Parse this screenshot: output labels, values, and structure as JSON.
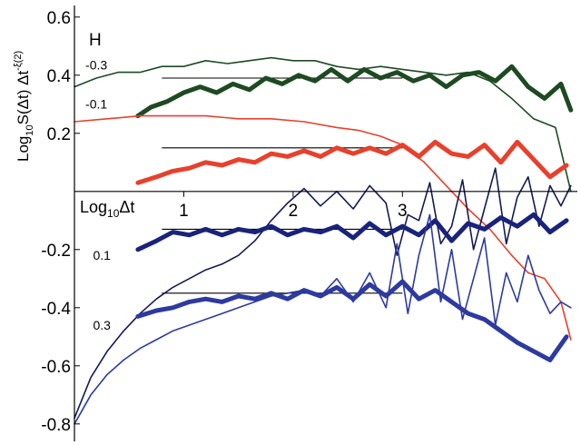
{
  "chart_data": {
    "type": "line",
    "xlabel_main": "Log",
    "xlabel_sub": "10",
    "xlabel_tail": "Δt",
    "ylabel_main": "Log",
    "ylabel_sub": "10",
    "ylabel_mid": "S(Δt) Δt",
    "ylabel_sup": "-ξ(2)",
    "legend_title": "H",
    "xlim": [
      0.0,
      4.6
    ],
    "ylim": [
      -0.86,
      0.64
    ],
    "x_ticks": [
      {
        "value": 1,
        "label": "1"
      },
      {
        "value": 2,
        "label": "2"
      },
      {
        "value": 3,
        "label": "3"
      }
    ],
    "y_ticks": [
      {
        "value": 0.6,
        "label": "0.6"
      },
      {
        "value": 0.4,
        "label": "0.4"
      },
      {
        "value": 0.2,
        "label": "0.2"
      },
      {
        "value": -0.2,
        "label": "-0.2"
      },
      {
        "value": -0.4,
        "label": "-0.4"
      },
      {
        "value": -0.6,
        "label": "-0.6"
      },
      {
        "value": -0.8,
        "label": "-0.8"
      }
    ],
    "series_labels": [
      {
        "text": "-0.3",
        "x": 0.1,
        "y": 0.42
      },
      {
        "text": "-0.1",
        "x": 0.1,
        "y": 0.285
      },
      {
        "text": "0.1",
        "x": 0.17,
        "y": -0.235
      },
      {
        "text": "0.3",
        "x": 0.17,
        "y": -0.475
      }
    ],
    "reference_lines": [
      {
        "color": "#000000",
        "x": [
          0.8,
          3.0
        ],
        "y": [
          0.39,
          0.39
        ]
      },
      {
        "color": "#000000",
        "x": [
          0.8,
          3.0
        ],
        "y": [
          0.15,
          0.15
        ]
      },
      {
        "color": "#000000",
        "x": [
          0.8,
          3.0
        ],
        "y": [
          -0.13,
          -0.13
        ]
      },
      {
        "color": "#000000",
        "x": [
          0.8,
          3.0
        ],
        "y": [
          -0.35,
          -0.35
        ]
      }
    ],
    "series": [
      {
        "color": "#1e4a22",
        "width": 1.6,
        "x": [
          0,
          0.2,
          0.4,
          0.6,
          0.8,
          1.0,
          1.2,
          1.4,
          1.6,
          1.8,
          2.0,
          2.2,
          2.4,
          2.6,
          2.8,
          3.0,
          3.2,
          3.4,
          3.6,
          3.8,
          4.0,
          4.2,
          4.4,
          4.54
        ],
        "y": [
          0.36,
          0.39,
          0.41,
          0.41,
          0.43,
          0.43,
          0.45,
          0.44,
          0.45,
          0.46,
          0.45,
          0.45,
          0.43,
          0.42,
          0.43,
          0.42,
          0.41,
          0.4,
          0.41,
          0.38,
          0.32,
          0.25,
          0.22,
          0.0
        ]
      },
      {
        "color": "#1e4a22",
        "width": 5,
        "x": [
          0.58,
          0.7,
          0.85,
          1.0,
          1.15,
          1.3,
          1.45,
          1.6,
          1.75,
          1.9,
          2.05,
          2.2,
          2.35,
          2.5,
          2.65,
          2.8,
          2.95,
          3.1,
          3.25,
          3.4,
          3.55,
          3.7,
          3.85,
          4.0,
          4.15,
          4.3,
          4.45,
          4.54
        ],
        "y": [
          0.26,
          0.29,
          0.31,
          0.34,
          0.36,
          0.34,
          0.37,
          0.35,
          0.39,
          0.37,
          0.4,
          0.38,
          0.42,
          0.38,
          0.42,
          0.39,
          0.41,
          0.38,
          0.4,
          0.36,
          0.4,
          0.41,
          0.38,
          0.43,
          0.36,
          0.32,
          0.37,
          0.28
        ]
      },
      {
        "color": "#e8402c",
        "width": 1.6,
        "x": [
          0,
          0.3,
          0.6,
          0.9,
          1.2,
          1.5,
          1.8,
          2.1,
          2.4,
          2.6,
          2.8,
          3.0,
          3.1,
          3.2,
          3.3,
          3.45,
          3.6,
          3.8,
          4.0,
          4.15,
          4.3,
          4.45,
          4.54
        ],
        "y": [
          0.24,
          0.25,
          0.26,
          0.26,
          0.26,
          0.25,
          0.25,
          0.24,
          0.22,
          0.21,
          0.19,
          0.16,
          0.13,
          0.1,
          0.06,
          0.0,
          -0.06,
          -0.13,
          -0.22,
          -0.28,
          -0.3,
          -0.38,
          -0.51
        ]
      },
      {
        "color": "#e8402c",
        "width": 5,
        "x": [
          0.58,
          0.75,
          0.9,
          1.05,
          1.2,
          1.35,
          1.5,
          1.65,
          1.8,
          1.95,
          2.1,
          2.25,
          2.4,
          2.55,
          2.7,
          2.85,
          3.0,
          3.15,
          3.3,
          3.45,
          3.6,
          3.75,
          3.9,
          4.05,
          4.2,
          4.35,
          4.5
        ],
        "y": [
          0.03,
          0.05,
          0.07,
          0.08,
          0.1,
          0.09,
          0.11,
          0.1,
          0.13,
          0.12,
          0.14,
          0.12,
          0.15,
          0.13,
          0.15,
          0.13,
          0.16,
          0.12,
          0.17,
          0.13,
          0.12,
          0.16,
          0.1,
          0.17,
          0.11,
          0.05,
          0.09
        ]
      },
      {
        "color": "#141a52",
        "width": 1.6,
        "x": [
          0,
          0.15,
          0.3,
          0.45,
          0.6,
          0.75,
          0.9,
          1.05,
          1.2,
          1.35,
          1.5,
          1.65,
          1.8,
          1.95,
          2.1,
          2.25,
          2.4,
          2.55,
          2.7,
          2.85,
          2.95,
          3.05,
          3.15,
          3.25,
          3.35,
          3.45,
          3.55,
          3.65,
          3.75,
          3.85,
          3.95,
          4.05,
          4.15,
          4.25,
          4.35,
          4.45,
          4.54
        ],
        "y": [
          -0.78,
          -0.64,
          -0.55,
          -0.48,
          -0.42,
          -0.37,
          -0.33,
          -0.3,
          -0.27,
          -0.25,
          -0.22,
          -0.17,
          -0.1,
          -0.04,
          0.01,
          -0.05,
          0.0,
          -0.06,
          0.02,
          -0.04,
          -0.22,
          -0.08,
          -0.1,
          0.03,
          -0.18,
          -0.12,
          0.04,
          -0.2,
          -0.06,
          0.08,
          -0.18,
          -0.02,
          0.05,
          -0.12,
          0.02,
          -0.05,
          0.02
        ]
      },
      {
        "color": "#1a237a",
        "width": 5,
        "x": [
          0.58,
          0.75,
          0.9,
          1.05,
          1.2,
          1.35,
          1.5,
          1.65,
          1.8,
          1.95,
          2.1,
          2.25,
          2.4,
          2.55,
          2.7,
          2.85,
          3.0,
          3.15,
          3.3,
          3.45,
          3.6,
          3.75,
          3.9,
          4.05,
          4.2,
          4.35,
          4.5
        ],
        "y": [
          -0.2,
          -0.17,
          -0.14,
          -0.15,
          -0.13,
          -0.15,
          -0.13,
          -0.14,
          -0.12,
          -0.15,
          -0.13,
          -0.14,
          -0.12,
          -0.16,
          -0.11,
          -0.15,
          -0.12,
          -0.15,
          -0.1,
          -0.17,
          -0.11,
          -0.13,
          -0.09,
          -0.12,
          -0.08,
          -0.14,
          -0.1
        ]
      },
      {
        "color": "#2d3a9e",
        "width": 1.6,
        "x": [
          0,
          0.15,
          0.3,
          0.45,
          0.6,
          0.75,
          0.9,
          1.05,
          1.2,
          1.35,
          1.5,
          1.65,
          1.8,
          1.95,
          2.1,
          2.25,
          2.4,
          2.55,
          2.7,
          2.85,
          2.95,
          3.05,
          3.15,
          3.25,
          3.35,
          3.45,
          3.55,
          3.65,
          3.75,
          3.85,
          3.95,
          4.05,
          4.15,
          4.25,
          4.35,
          4.45,
          4.54
        ],
        "y": [
          -0.8,
          -0.7,
          -0.63,
          -0.58,
          -0.54,
          -0.51,
          -0.48,
          -0.46,
          -0.44,
          -0.42,
          -0.4,
          -0.38,
          -0.36,
          -0.35,
          -0.34,
          -0.36,
          -0.3,
          -0.38,
          -0.28,
          -0.4,
          -0.18,
          -0.42,
          -0.22,
          -0.08,
          -0.38,
          -0.2,
          -0.44,
          -0.3,
          -0.16,
          -0.46,
          -0.28,
          -0.38,
          -0.22,
          -0.34,
          -0.42,
          -0.38,
          -0.4
        ]
      },
      {
        "color": "#2d3a9e",
        "width": 5,
        "x": [
          0.58,
          0.75,
          0.9,
          1.05,
          1.2,
          1.35,
          1.5,
          1.65,
          1.8,
          1.95,
          2.1,
          2.25,
          2.4,
          2.55,
          2.7,
          2.85,
          3.0,
          3.15,
          3.3,
          3.45,
          3.6,
          3.75,
          3.9,
          4.05,
          4.2,
          4.35,
          4.5
        ],
        "y": [
          -0.43,
          -0.41,
          -0.4,
          -0.38,
          -0.37,
          -0.38,
          -0.36,
          -0.37,
          -0.35,
          -0.37,
          -0.34,
          -0.36,
          -0.33,
          -0.37,
          -0.32,
          -0.36,
          -0.31,
          -0.37,
          -0.34,
          -0.38,
          -0.42,
          -0.44,
          -0.48,
          -0.52,
          -0.55,
          -0.58,
          -0.5
        ]
      }
    ]
  }
}
